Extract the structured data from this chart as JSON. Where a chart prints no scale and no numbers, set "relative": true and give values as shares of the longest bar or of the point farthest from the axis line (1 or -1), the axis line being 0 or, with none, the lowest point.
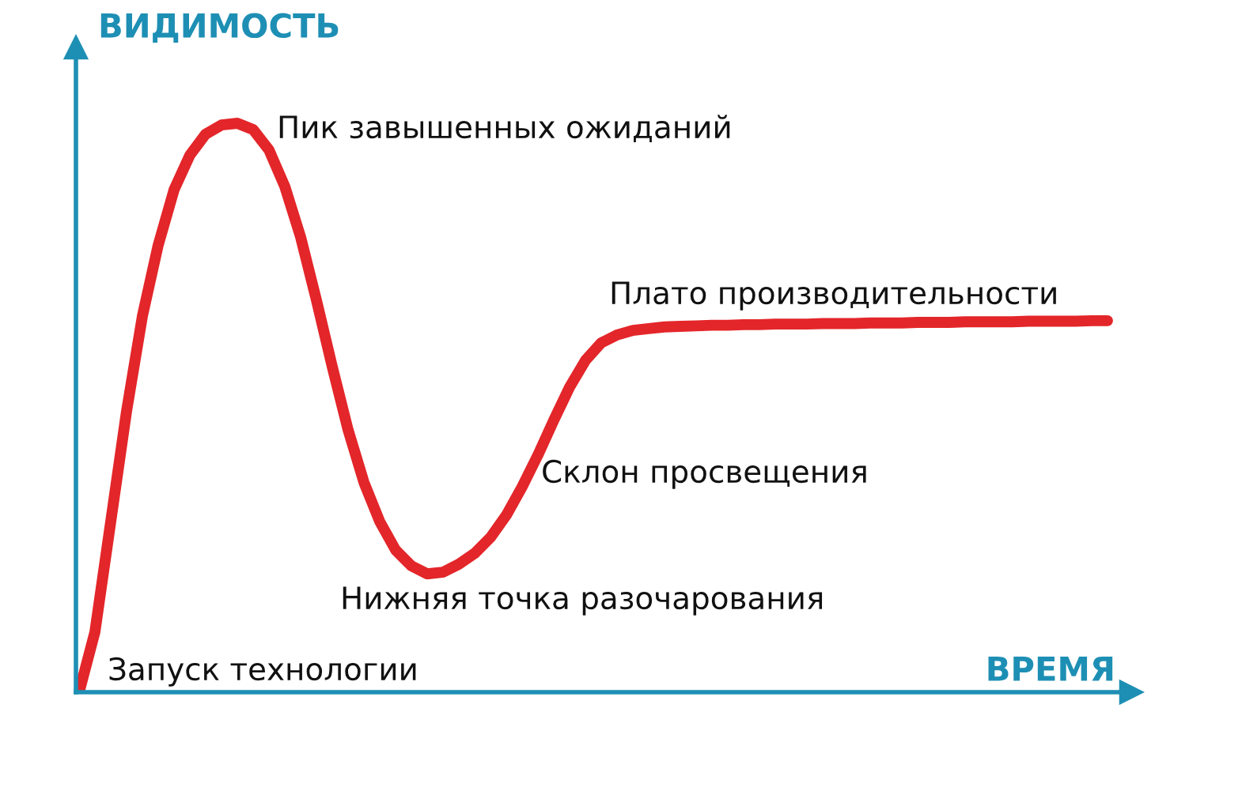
{
  "chart_data": {
    "type": "line",
    "relative": true,
    "xlabel": "ВРЕМЯ",
    "ylabel": "ВИДИМОСТЬ",
    "marker": "none",
    "line_style": "solid",
    "categories": [
      null,
      null,
      null,
      null,
      null,
      null,
      null,
      null,
      null,
      null,
      null,
      null,
      null,
      null,
      null,
      null,
      null,
      null,
      null,
      null,
      null,
      null,
      null,
      null,
      null,
      null,
      null,
      null,
      null,
      null,
      null,
      null,
      null,
      null,
      null,
      null,
      null,
      null,
      null,
      null,
      null,
      null,
      null,
      null,
      null,
      null,
      null,
      null,
      null,
      null,
      null,
      null,
      null,
      null,
      null,
      null,
      null,
      null,
      null,
      null,
      null,
      null,
      null,
      null,
      null,
      null
    ],
    "series": [
      {
        "color": "#e3262a",
        "values": [
          0,
          0.106,
          0.3,
          0.494,
          0.661,
          0.786,
          0.883,
          0.944,
          0.981,
          0.997,
          1,
          0.989,
          0.953,
          0.889,
          0.8,
          0.689,
          0.572,
          0.461,
          0.369,
          0.3,
          0.25,
          0.222,
          0.208,
          0.211,
          0.225,
          0.244,
          0.272,
          0.311,
          0.361,
          0.417,
          0.478,
          0.536,
          0.583,
          0.614,
          0.628,
          0.636,
          0.639,
          0.642,
          0.643,
          0.644,
          0.645,
          0.645,
          0.646,
          0.646,
          0.647,
          0.647,
          0.647,
          0.648,
          0.648,
          0.648,
          0.649,
          0.649,
          0.649,
          0.65,
          0.65,
          0.65,
          0.651,
          0.651,
          0.651,
          0.651,
          0.652,
          0.652,
          0.652,
          0.652,
          0.653,
          0.653
        ]
      }
    ],
    "annotations": [
      "Пик завышенных ожиданий",
      "Плато производительности",
      "Склон просвещения",
      "Нижняя точка разочарования",
      "Запуск технологии"
    ]
  }
}
